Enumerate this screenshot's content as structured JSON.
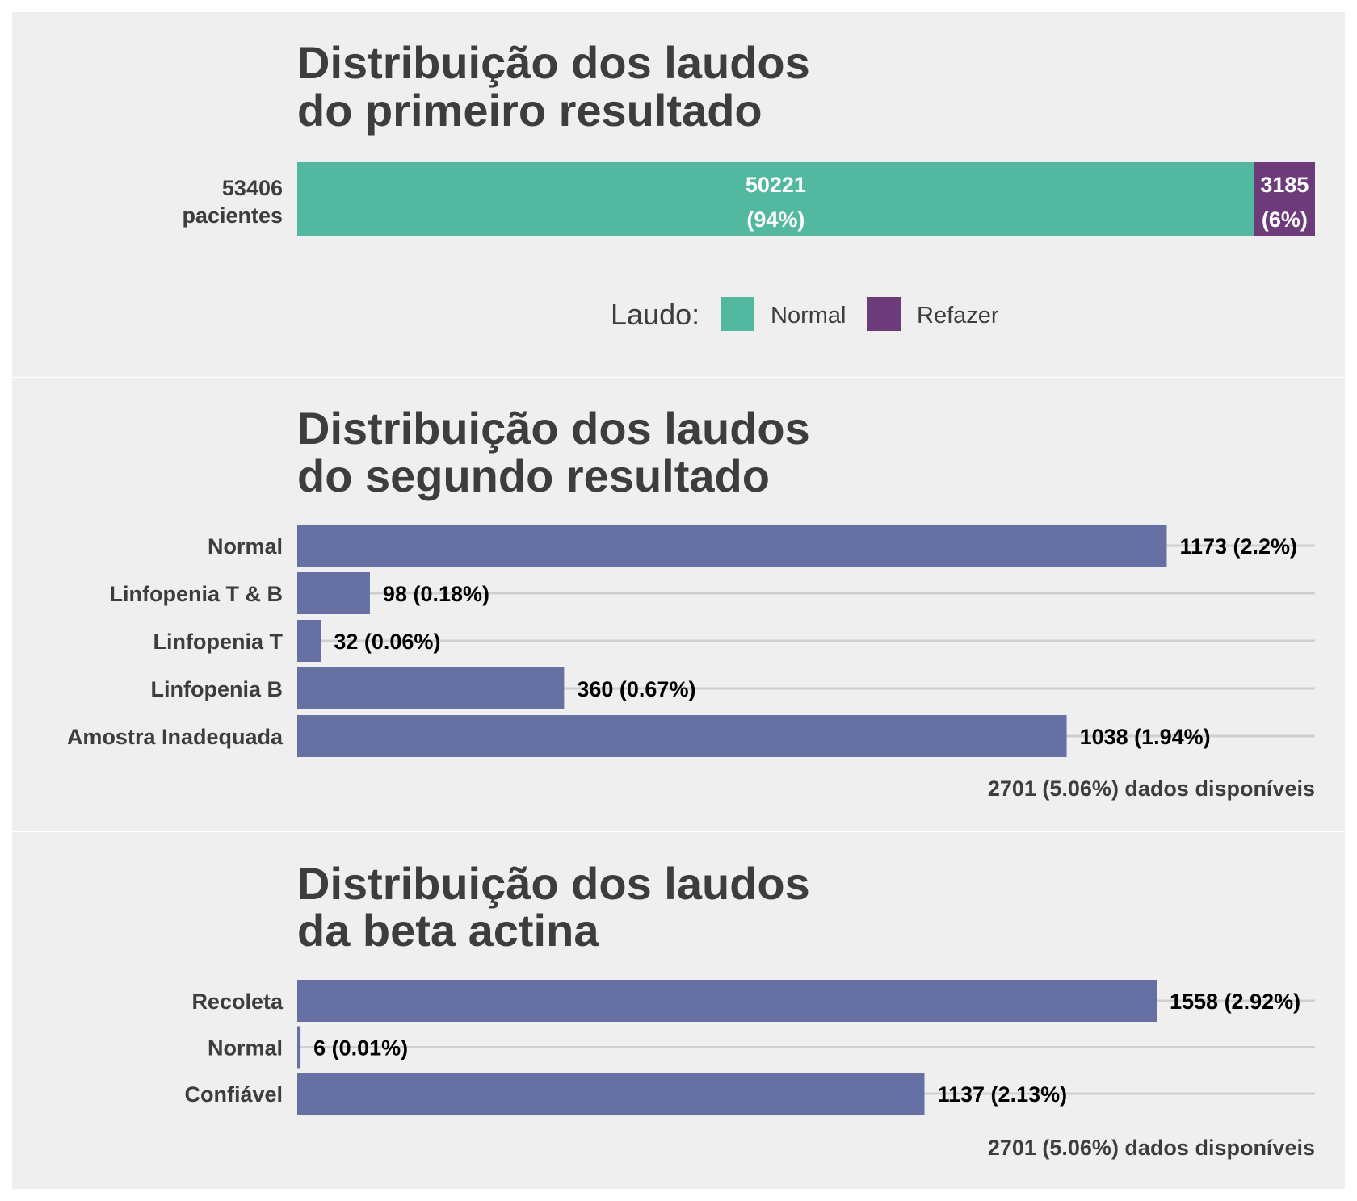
{
  "colors": {
    "panel_bg": "#efefef",
    "normal": "#52b89f",
    "refazer": "#6d3b7a",
    "bar": "#6670a2",
    "grid": "#cfcfcf",
    "title_text": "#3d3d3d"
  },
  "chart_data": [
    {
      "type": "bar",
      "orientation": "horizontal",
      "stacked": true,
      "title_lines": [
        "Distribuição dos laudos",
        "do primeiro resultado"
      ],
      "row_label_lines": [
        "53406",
        "pacientes"
      ],
      "total": 53406,
      "series": [
        {
          "name": "Normal",
          "value": 50221,
          "label_top": "50221",
          "label_bottom": "(94%)",
          "color": "#52b89f"
        },
        {
          "name": "Refazer",
          "value": 3185,
          "label_top": "3185",
          "label_bottom": "(6%)",
          "color": "#6d3b7a"
        }
      ],
      "legend": {
        "title": "Laudo:",
        "position": "bottom",
        "items": [
          "Normal",
          "Refazer"
        ]
      }
    },
    {
      "type": "bar",
      "orientation": "horizontal",
      "title_lines": [
        "Distribuição dos laudos",
        "do segundo resultado"
      ],
      "categories": [
        "Normal",
        "Linfopenia T & B",
        "Linfopenia T",
        "Linfopenia B",
        "Amostra Inadequada"
      ],
      "values": [
        1173,
        98,
        32,
        360,
        1038
      ],
      "value_labels": [
        "1173 (2.2%)",
        "98 (0.18%)",
        "32 (0.06%)",
        "360 (0.67%)",
        "1038 (1.94%)"
      ],
      "xlim": [
        0,
        1373
      ],
      "caption": "2701 (5.06%) dados disponíveis"
    },
    {
      "type": "bar",
      "orientation": "horizontal",
      "title_lines": [
        "Distribuição dos laudos",
        "da beta actina"
      ],
      "categories": [
        "Recoleta",
        "Normal",
        "Confiável"
      ],
      "values": [
        1558,
        6,
        1137
      ],
      "value_labels": [
        "1558 (2.92%)",
        "6 (0.01%)",
        "1137 (2.13%)"
      ],
      "xlim": [
        0,
        1845
      ],
      "caption": "2701 (5.06%) dados disponíveis"
    }
  ]
}
